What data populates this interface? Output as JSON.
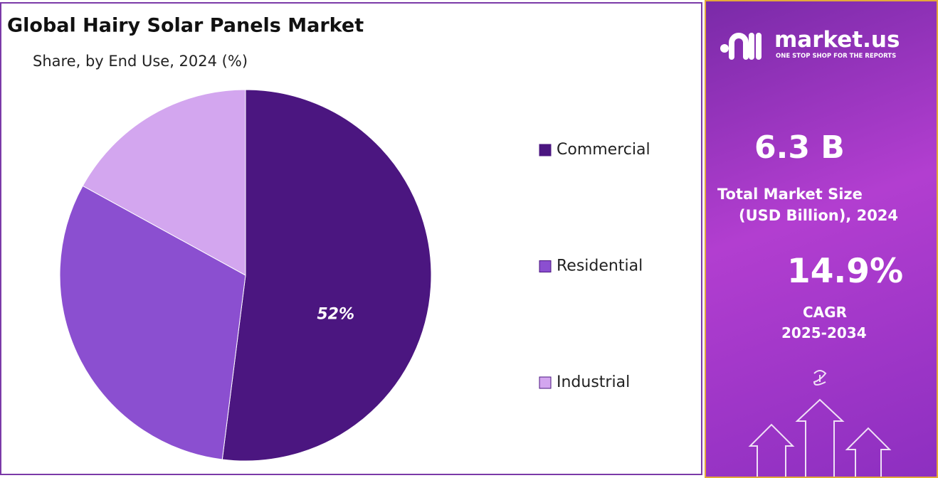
{
  "chart_data": {
    "type": "pie",
    "title": "Global Hairy Solar Panels Market",
    "subtitle": "Share, by End Use, 2024 (%)",
    "categories": [
      "Commercial",
      "Residential",
      "Industrial"
    ],
    "values": [
      52,
      31,
      17
    ],
    "value_labels": [
      "52%",
      null,
      null
    ],
    "colors": [
      "#4b1680",
      "#8b4fd0",
      "#d3a6ef"
    ]
  },
  "panel": {
    "brand": "market.us",
    "tagline": "ONE STOP SHOP FOR THE REPORTS",
    "market_size": "6.3 B",
    "market_size_label_1": "Total Market Size",
    "market_size_label_2": "(USD Billion), 2024",
    "cagr": "14.9%",
    "cagr_label": "CAGR",
    "cagr_period": "2025-2034"
  }
}
